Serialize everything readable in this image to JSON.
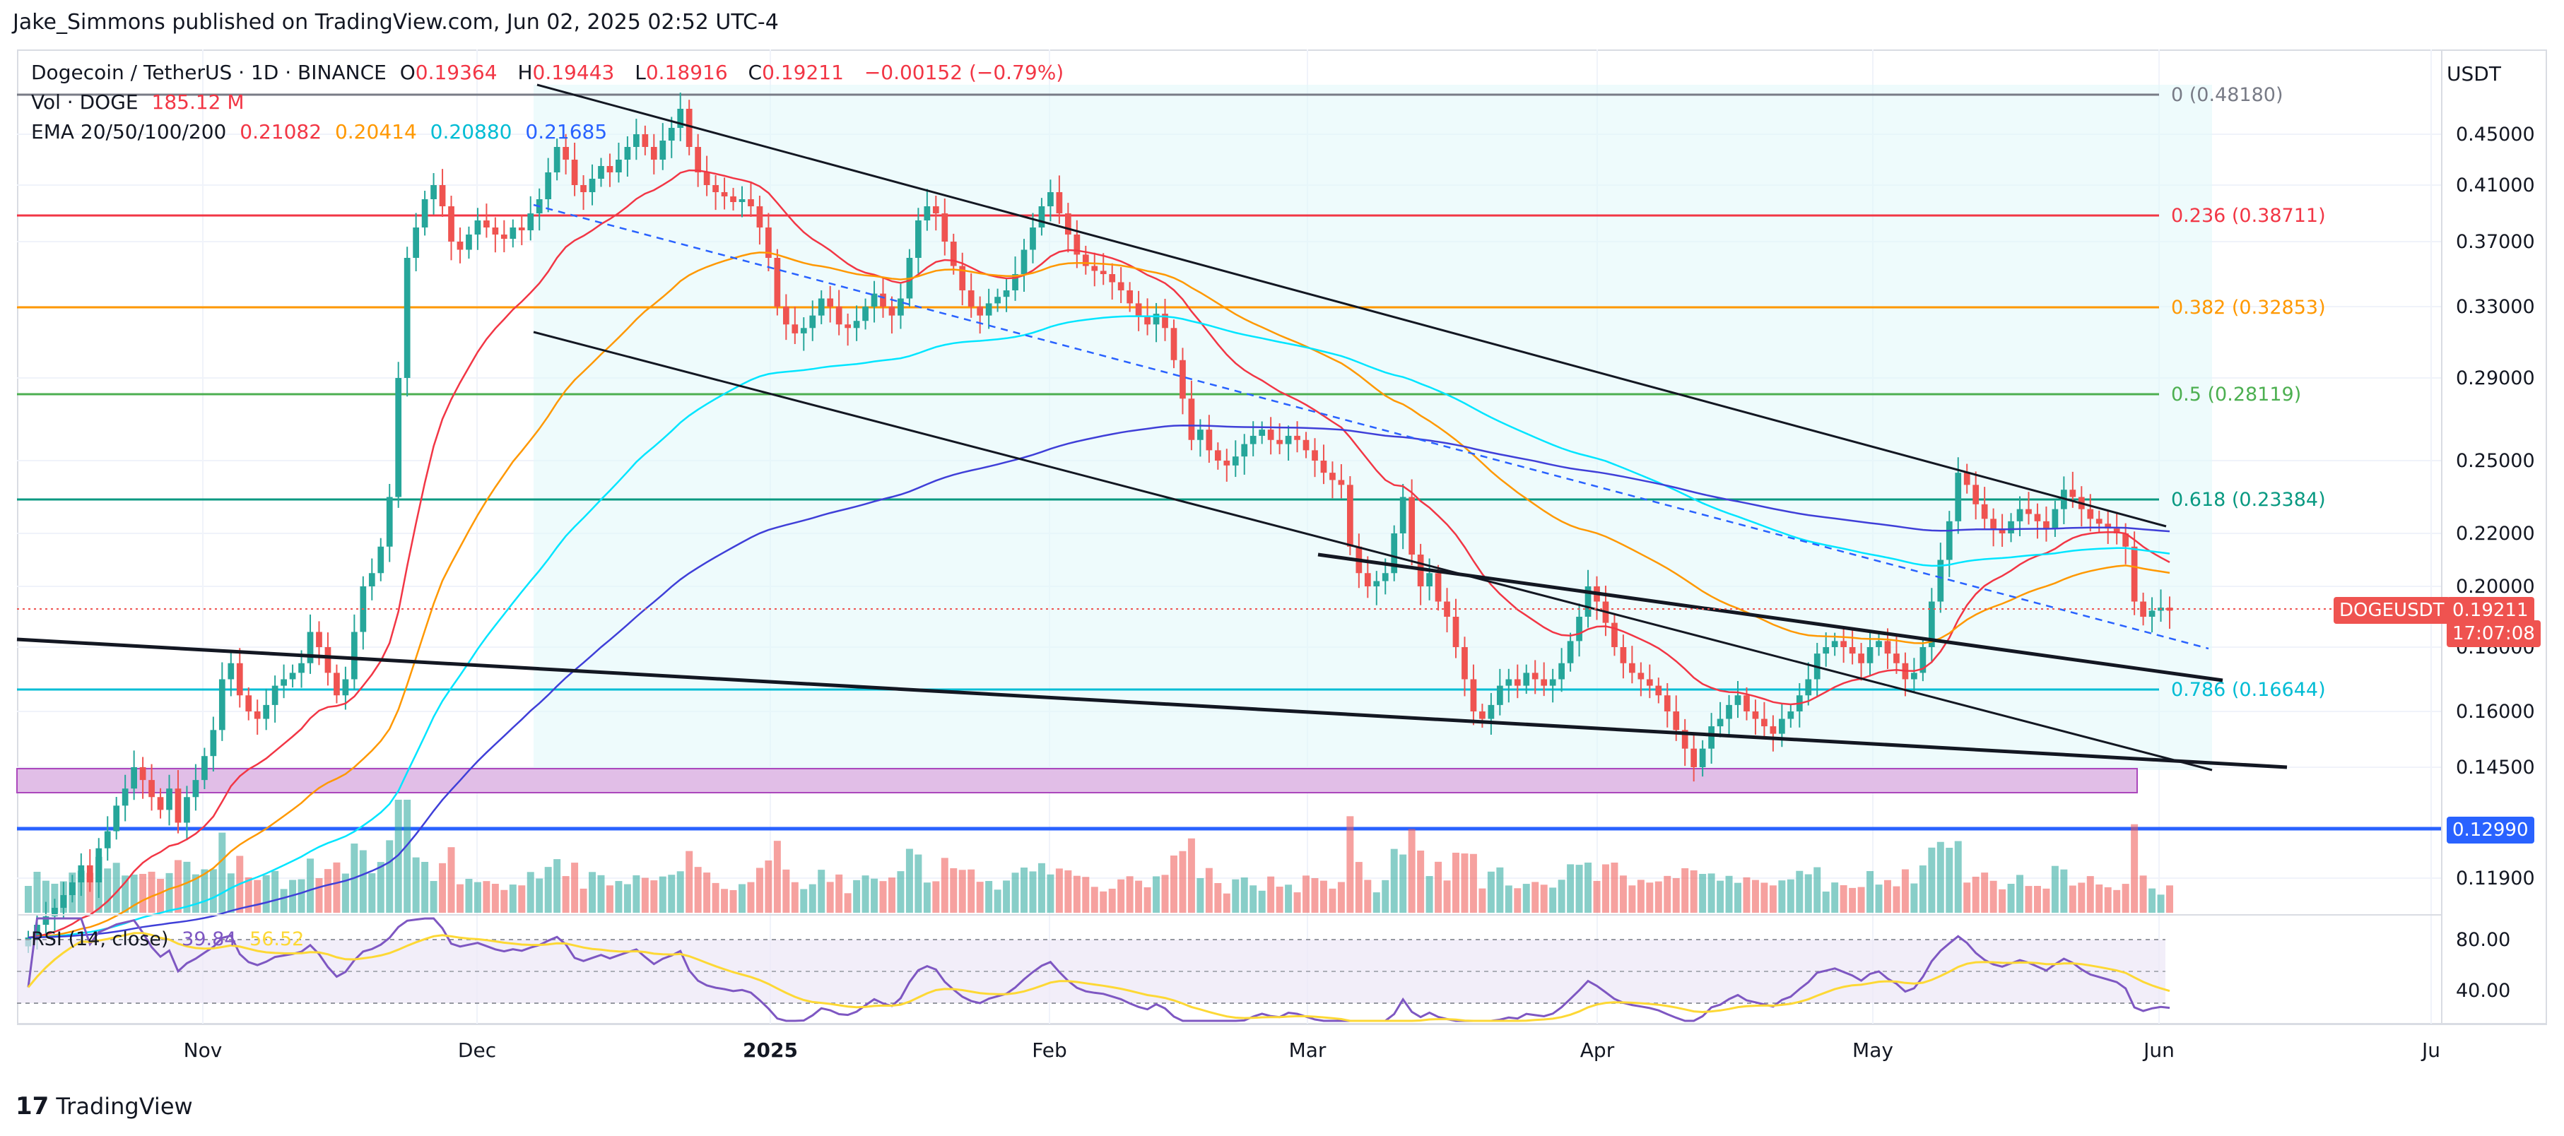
{
  "header": {
    "publisher": "Jake_Simmons published on TradingView.com, Jun 02, 2025 02:52 UTC-4"
  },
  "legend": {
    "symbol": "Dogecoin / TetherUS · 1D · BINANCE",
    "open_label": "O",
    "open": "0.19364",
    "high_label": "H",
    "high": "0.19443",
    "low_label": "L",
    "low": "0.18916",
    "close_label": "C",
    "close": "0.19211",
    "change": "−0.00152 (−0.79%)",
    "vol_label": "Vol · DOGE",
    "vol_value": "185.12 M",
    "ema_label": "EMA 20/50/100/200",
    "ema20": "0.21082",
    "ema50": "0.20414",
    "ema100": "0.20880",
    "ema200": "0.21685",
    "rsi_label": "RSI (14, close)",
    "rsi_value": "39.84",
    "rsi_ma": "56.52"
  },
  "currency": "USDT",
  "price_axis": [
    "0.45000",
    "0.41000",
    "0.37000",
    "0.33000",
    "0.29000",
    "0.25000",
    "0.22000",
    "0.20000",
    "0.18000",
    "0.16000",
    "0.14500",
    "0.11900"
  ],
  "rsi_axis": [
    "80.00",
    "40.00"
  ],
  "time_axis": [
    "Nov",
    "Dec",
    "2025",
    "Feb",
    "Mar",
    "Apr",
    "May",
    "Jun",
    "Ju"
  ],
  "fib_levels": [
    {
      "label": "0 (0.48180)",
      "color": "#787b86"
    },
    {
      "label": "0.236 (0.38711)",
      "color": "#f23645"
    },
    {
      "label": "0.382 (0.32853)",
      "color": "#ff9800"
    },
    {
      "label": "0.5 (0.28119)",
      "color": "#4caf50"
    },
    {
      "label": "0.618 (0.23384)",
      "color": "#089981"
    },
    {
      "label": "0.786 (0.16644)",
      "color": "#00bcd4"
    }
  ],
  "tags": {
    "symbol_tag": "DOGEUSDT",
    "price_tag": "0.19211",
    "countdown": "17:07:08",
    "support_tag": "0.12990"
  },
  "colors": {
    "up": "#26a69a",
    "down": "#ef5350",
    "ema20": "#f23645",
    "ema50": "#ff9800",
    "ema100": "#00e5ff",
    "ema200": "#3f3fd8"
  },
  "footer": {
    "brand": "TradingView",
    "logo": "17"
  },
  "chart_data": {
    "type": "candlestick",
    "x_start": "2024-10-01",
    "x_end": "2025-06-02",
    "closes": [
      0.105,
      0.108,
      0.11,
      0.112,
      0.115,
      0.118,
      0.122,
      0.118,
      0.126,
      0.13,
      0.136,
      0.14,
      0.145,
      0.142,
      0.138,
      0.135,
      0.14,
      0.132,
      0.138,
      0.142,
      0.148,
      0.155,
      0.17,
      0.175,
      0.165,
      0.16,
      0.158,
      0.162,
      0.168,
      0.17,
      0.172,
      0.175,
      0.185,
      0.18,
      0.172,
      0.165,
      0.17,
      0.185,
      0.2,
      0.205,
      0.215,
      0.235,
      0.29,
      0.36,
      0.38,
      0.4,
      0.41,
      0.395,
      0.37,
      0.365,
      0.375,
      0.385,
      0.38,
      0.375,
      0.372,
      0.38,
      0.378,
      0.39,
      0.4,
      0.42,
      0.44,
      0.43,
      0.41,
      0.405,
      0.415,
      0.425,
      0.42,
      0.43,
      0.44,
      0.45,
      0.44,
      0.43,
      0.445,
      0.455,
      0.47,
      0.44,
      0.42,
      0.41,
      0.405,
      0.402,
      0.398,
      0.4,
      0.395,
      0.38,
      0.36,
      0.33,
      0.32,
      0.315,
      0.318,
      0.325,
      0.335,
      0.33,
      0.32,
      0.318,
      0.322,
      0.33,
      0.338,
      0.33,
      0.325,
      0.335,
      0.36,
      0.385,
      0.395,
      0.39,
      0.37,
      0.355,
      0.34,
      0.33,
      0.325,
      0.332,
      0.336,
      0.34,
      0.35,
      0.365,
      0.38,
      0.395,
      0.405,
      0.39,
      0.375,
      0.362,
      0.355,
      0.352,
      0.35,
      0.345,
      0.34,
      0.332,
      0.325,
      0.32,
      0.326,
      0.318,
      0.3,
      0.28,
      0.26,
      0.265,
      0.255,
      0.25,
      0.248,
      0.252,
      0.258,
      0.262,
      0.265,
      0.26,
      0.258,
      0.262,
      0.26,
      0.255,
      0.25,
      0.245,
      0.242,
      0.24,
      0.215,
      0.205,
      0.2,
      0.202,
      0.205,
      0.22,
      0.235,
      0.212,
      0.2,
      0.205,
      0.195,
      0.19,
      0.18,
      0.17,
      0.16,
      0.158,
      0.162,
      0.168,
      0.17,
      0.168,
      0.172,
      0.17,
      0.168,
      0.17,
      0.175,
      0.182,
      0.19,
      0.2,
      0.195,
      0.188,
      0.18,
      0.175,
      0.172,
      0.17,
      0.168,
      0.165,
      0.16,
      0.155,
      0.15,
      0.145,
      0.15,
      0.156,
      0.158,
      0.162,
      0.165,
      0.16,
      0.158,
      0.156,
      0.154,
      0.158,
      0.16,
      0.165,
      0.17,
      0.178,
      0.18,
      0.182,
      0.18,
      0.178,
      0.175,
      0.18,
      0.182,
      0.178,
      0.175,
      0.17,
      0.172,
      0.18,
      0.195,
      0.21,
      0.225,
      0.245,
      0.24,
      0.232,
      0.226,
      0.222,
      0.22,
      0.225,
      0.23,
      0.228,
      0.225,
      0.222,
      0.23,
      0.238,
      0.235,
      0.23,
      0.226,
      0.224,
      0.222,
      0.22,
      0.215,
      0.195,
      0.19,
      0.192,
      0.193,
      0.192
    ]
  }
}
